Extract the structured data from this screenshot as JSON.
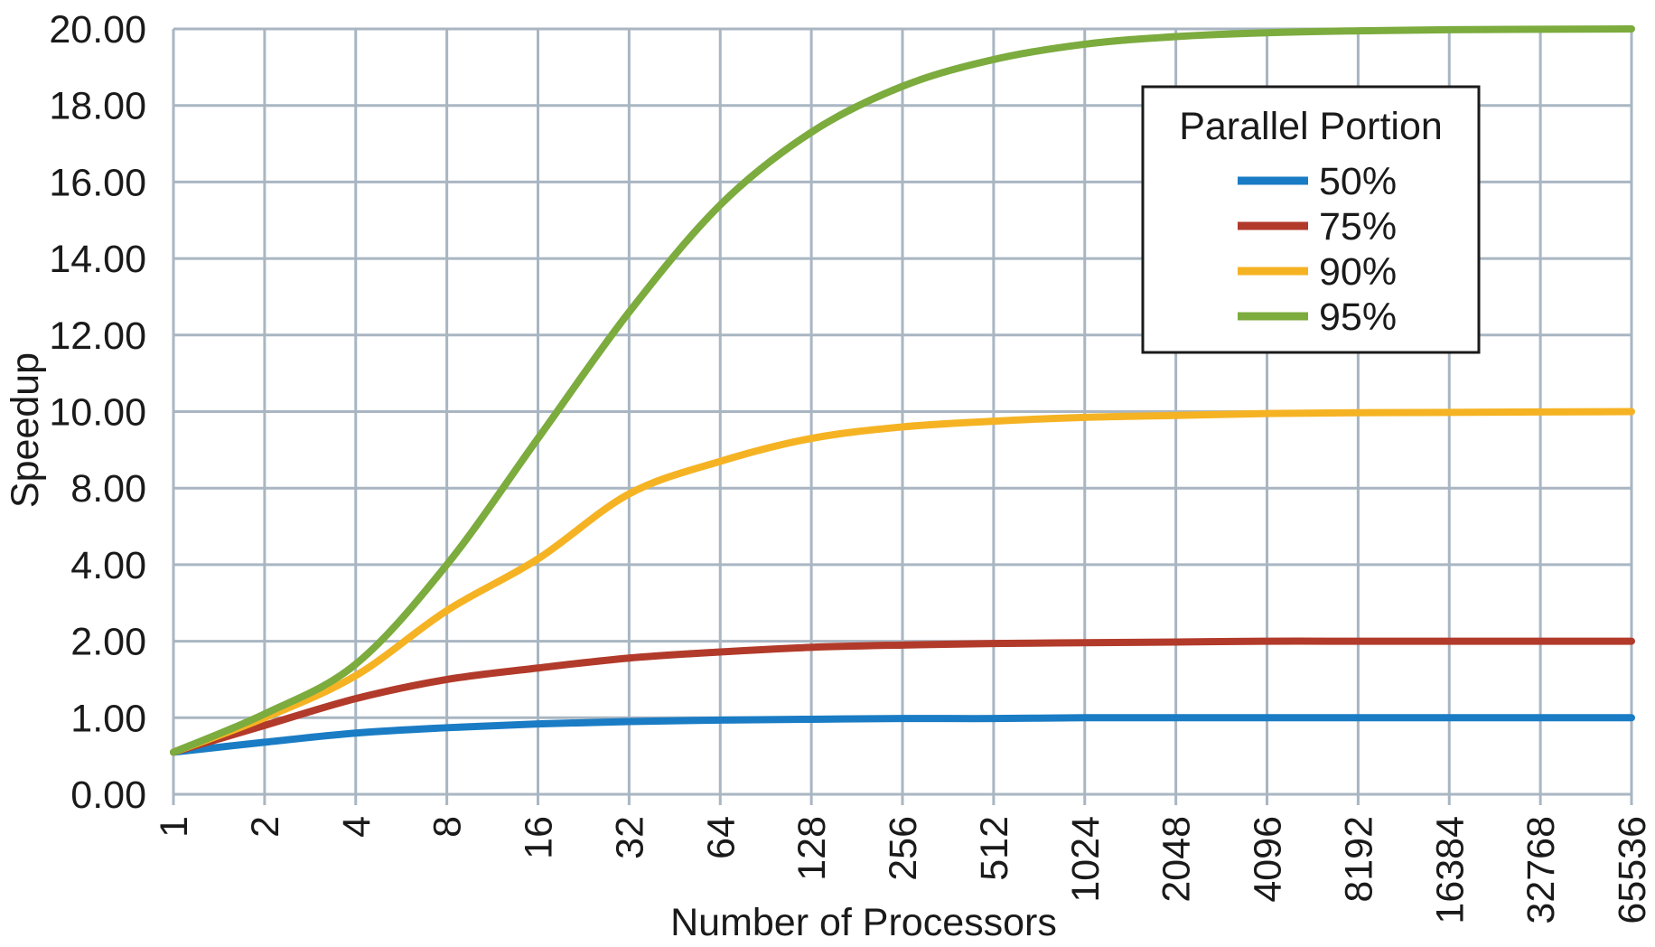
{
  "chart_data": {
    "type": "line",
    "xlabel": "Number of Processors",
    "ylabel": "Speedup",
    "x_scale": "log2",
    "x": [
      1,
      2,
      4,
      8,
      16,
      32,
      64,
      128,
      256,
      512,
      1024,
      2048,
      4096,
      8192,
      16384,
      32768,
      65536
    ],
    "x_tick_labels": [
      "1",
      "2",
      "4",
      "8",
      "16",
      "32",
      "64",
      "128",
      "256",
      "512",
      "1024",
      "2048",
      "4096",
      "8192",
      "16384",
      "32768",
      "65536"
    ],
    "y_tick_labels": [
      "0.00",
      "1.00",
      "2.00",
      "4.00",
      "8.00",
      "10.00",
      "12.00",
      "14.00",
      "16.00",
      "18.00",
      "20.00"
    ],
    "y_tick_values": [
      0,
      1,
      2,
      4,
      8,
      10,
      12,
      14,
      16,
      18,
      20
    ],
    "ylim": [
      0,
      20
    ],
    "grid": true,
    "legend": {
      "title": "Parallel Portion",
      "placement": "top-right"
    },
    "series": [
      {
        "name": "50%",
        "color": "#1a7cc4",
        "values": [
          0.55,
          0.68,
          0.8,
          0.87,
          0.92,
          0.95,
          0.97,
          0.98,
          0.99,
          0.99,
          1.0,
          1.0,
          1.0,
          1.0,
          1.0,
          1.0,
          1.0
        ]
      },
      {
        "name": "75%",
        "color": "#b23a2a",
        "values": [
          0.55,
          0.9,
          1.25,
          1.5,
          1.65,
          1.78,
          1.86,
          1.92,
          1.95,
          1.97,
          1.98,
          1.99,
          2.0,
          2.0,
          2.0,
          2.0,
          2.0
        ]
      },
      {
        "name": "90%",
        "color": "#f5b323",
        "values": [
          0.55,
          1.0,
          1.55,
          2.8,
          4.3,
          7.7,
          8.7,
          9.3,
          9.6,
          9.75,
          9.85,
          9.9,
          9.95,
          9.97,
          9.98,
          9.99,
          10.0
        ]
      },
      {
        "name": "95%",
        "color": "#7cab3e",
        "values": [
          0.55,
          1.05,
          1.7,
          4.0,
          9.3,
          12.6,
          15.4,
          17.3,
          18.5,
          19.2,
          19.6,
          19.8,
          19.9,
          19.95,
          19.98,
          19.99,
          20.0
        ]
      }
    ]
  }
}
